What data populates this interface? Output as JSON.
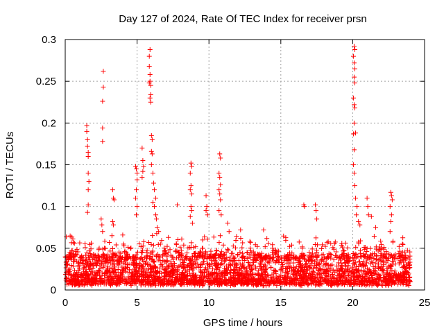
{
  "chart_data": {
    "type": "scatter",
    "title": "Day 127 of 2024, Rate Of TEC Index for receiver prsn",
    "xlabel": "GPS time / hours",
    "ylabel": "ROTI / TECUs",
    "xlim": [
      0,
      25
    ],
    "ylim": [
      0,
      0.3
    ],
    "x_ticks": [
      0,
      5,
      10,
      15,
      20,
      25
    ],
    "x_tick_labels": [
      "0",
      "5",
      "10",
      "15",
      "20",
      "25"
    ],
    "y_ticks": [
      0,
      0.05,
      0.1,
      0.15,
      0.2,
      0.25,
      0.3
    ],
    "y_tick_labels": [
      "0",
      "0.05",
      "0.1",
      "0.15",
      "0.2",
      "0.25",
      "0.3"
    ],
    "grid": true,
    "marker": "plus",
    "marker_color": "#ff0000",
    "data_range_x": [
      0,
      24
    ],
    "baseline_band": [
      0.005,
      0.04
    ],
    "series": [
      {
        "name": "ROTI",
        "points": [
          [
            1.5,
            0.197
          ],
          [
            1.5,
            0.19
          ],
          [
            1.55,
            0.18
          ],
          [
            1.55,
            0.172
          ],
          [
            1.6,
            0.165
          ],
          [
            1.6,
            0.16
          ],
          [
            1.6,
            0.14
          ],
          [
            1.65,
            0.13
          ],
          [
            1.6,
            0.12
          ],
          [
            1.6,
            0.102
          ],
          [
            1.55,
            0.093
          ],
          [
            2.65,
            0.262
          ],
          [
            2.65,
            0.243
          ],
          [
            2.6,
            0.226
          ],
          [
            2.6,
            0.194
          ],
          [
            2.6,
            0.178
          ],
          [
            2.5,
            0.085
          ],
          [
            2.55,
            0.078
          ],
          [
            2.6,
            0.07
          ],
          [
            3.3,
            0.12
          ],
          [
            3.35,
            0.11
          ],
          [
            3.4,
            0.108
          ],
          [
            3.3,
            0.082
          ],
          [
            3.35,
            0.078
          ],
          [
            3.25,
            0.065
          ],
          [
            4.9,
            0.148
          ],
          [
            4.95,
            0.145
          ],
          [
            5.0,
            0.14
          ],
          [
            5.0,
            0.132
          ],
          [
            4.95,
            0.12
          ],
          [
            4.9,
            0.11
          ],
          [
            5.0,
            0.1
          ],
          [
            4.95,
            0.09
          ],
          [
            5.35,
            0.17
          ],
          [
            5.4,
            0.155
          ],
          [
            5.45,
            0.148
          ],
          [
            5.4,
            0.142
          ],
          [
            5.35,
            0.135
          ],
          [
            5.9,
            0.288
          ],
          [
            5.85,
            0.28
          ],
          [
            5.85,
            0.268
          ],
          [
            5.9,
            0.258
          ],
          [
            5.9,
            0.25
          ],
          [
            5.85,
            0.248
          ],
          [
            5.95,
            0.245
          ],
          [
            5.95,
            0.234
          ],
          [
            5.9,
            0.23
          ],
          [
            5.95,
            0.225
          ],
          [
            6.0,
            0.185
          ],
          [
            6.05,
            0.18
          ],
          [
            6.0,
            0.166
          ],
          [
            6.05,
            0.163
          ],
          [
            6.0,
            0.15
          ],
          [
            6.1,
            0.14
          ],
          [
            6.15,
            0.128
          ],
          [
            6.2,
            0.12
          ],
          [
            6.3,
            0.11
          ],
          [
            6.1,
            0.105
          ],
          [
            6.2,
            0.1
          ],
          [
            6.3,
            0.09
          ],
          [
            6.35,
            0.085
          ],
          [
            6.4,
            0.075
          ],
          [
            6.5,
            0.07
          ],
          [
            7.8,
            0.102
          ],
          [
            8.75,
            0.152
          ],
          [
            8.8,
            0.148
          ],
          [
            8.7,
            0.14
          ],
          [
            8.75,
            0.125
          ],
          [
            8.7,
            0.12
          ],
          [
            8.8,
            0.115
          ],
          [
            8.75,
            0.1
          ],
          [
            8.8,
            0.095
          ],
          [
            8.7,
            0.088
          ],
          [
            8.85,
            0.08
          ],
          [
            9.8,
            0.113
          ],
          [
            9.85,
            0.1
          ],
          [
            9.8,
            0.095
          ],
          [
            9.9,
            0.09
          ],
          [
            10.75,
            0.163
          ],
          [
            10.8,
            0.158
          ],
          [
            10.7,
            0.14
          ],
          [
            10.75,
            0.135
          ],
          [
            10.8,
            0.126
          ],
          [
            10.7,
            0.12
          ],
          [
            10.75,
            0.115
          ],
          [
            10.8,
            0.108
          ],
          [
            10.7,
            0.095
          ],
          [
            10.85,
            0.09
          ],
          [
            11.3,
            0.08
          ],
          [
            11.4,
            0.07
          ],
          [
            12.2,
            0.072
          ],
          [
            13.8,
            0.072
          ],
          [
            16.6,
            0.102
          ],
          [
            16.65,
            0.1
          ],
          [
            17.4,
            0.102
          ],
          [
            17.45,
            0.095
          ],
          [
            17.5,
            0.085
          ],
          [
            20.1,
            0.292
          ],
          [
            20.15,
            0.288
          ],
          [
            20.05,
            0.28
          ],
          [
            20.1,
            0.272
          ],
          [
            20.15,
            0.265
          ],
          [
            20.1,
            0.255
          ],
          [
            20.15,
            0.248
          ],
          [
            20.05,
            0.23
          ],
          [
            20.1,
            0.222
          ],
          [
            20.15,
            0.218
          ],
          [
            20.1,
            0.2
          ],
          [
            20.2,
            0.188
          ],
          [
            20.05,
            0.187
          ],
          [
            20.1,
            0.168
          ],
          [
            20.05,
            0.15
          ],
          [
            20.1,
            0.14
          ],
          [
            20.15,
            0.125
          ],
          [
            20.2,
            0.11
          ],
          [
            20.3,
            0.1
          ],
          [
            20.25,
            0.09
          ],
          [
            20.4,
            0.082
          ],
          [
            20.5,
            0.078
          ],
          [
            21.0,
            0.11
          ],
          [
            21.05,
            0.1
          ],
          [
            21.1,
            0.09
          ],
          [
            21.3,
            0.088
          ],
          [
            21.6,
            0.075
          ],
          [
            22.65,
            0.117
          ],
          [
            22.7,
            0.113
          ],
          [
            22.75,
            0.108
          ],
          [
            22.6,
            0.1
          ],
          [
            22.7,
            0.09
          ],
          [
            22.65,
            0.082
          ],
          [
            22.6,
            0.07
          ]
        ]
      }
    ]
  }
}
